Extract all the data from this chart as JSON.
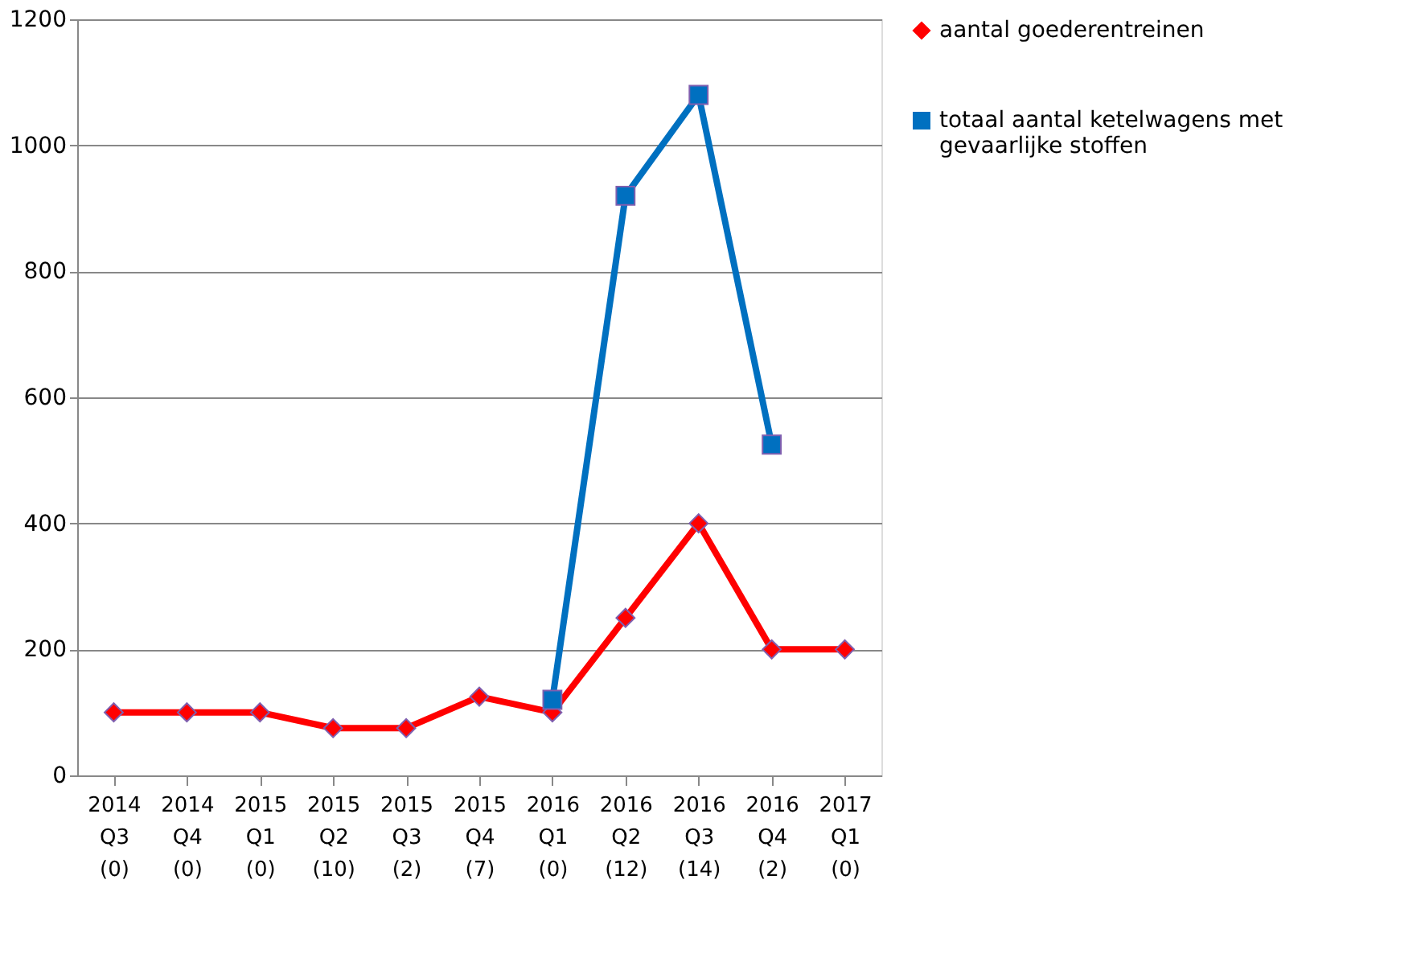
{
  "chart_data": {
    "type": "line",
    "categories": [
      "2014\nQ3\n(0)",
      "2014\nQ4\n(0)",
      "2015\nQ1\n(0)",
      "2015\nQ2\n(10)",
      "2015\nQ3\n(2)",
      "2015\nQ4\n(7)",
      "2016\nQ1\n(0)",
      "2016\nQ2\n(12)",
      "2016\nQ3\n(14)",
      "2016\nQ4\n(2)",
      "2017\nQ1\n(0)"
    ],
    "series": [
      {
        "name": "aantal goederentreinen",
        "color": "#ff0000",
        "marker": "diamond",
        "values": [
          100,
          100,
          100,
          75,
          75,
          125,
          100,
          250,
          400,
          200,
          200
        ]
      },
      {
        "name": "totaal aantal ketelwagens met gevaarlijke stoffen",
        "color": "#0070c0",
        "marker": "square",
        "values": [
          null,
          null,
          null,
          null,
          null,
          null,
          120,
          920,
          1080,
          525,
          null
        ]
      }
    ],
    "ylim": [
      0,
      1200
    ],
    "yticks": [
      0,
      200,
      400,
      600,
      800,
      1000,
      1200
    ],
    "grid": "y",
    "legend": "right",
    "line_style": "solid"
  }
}
